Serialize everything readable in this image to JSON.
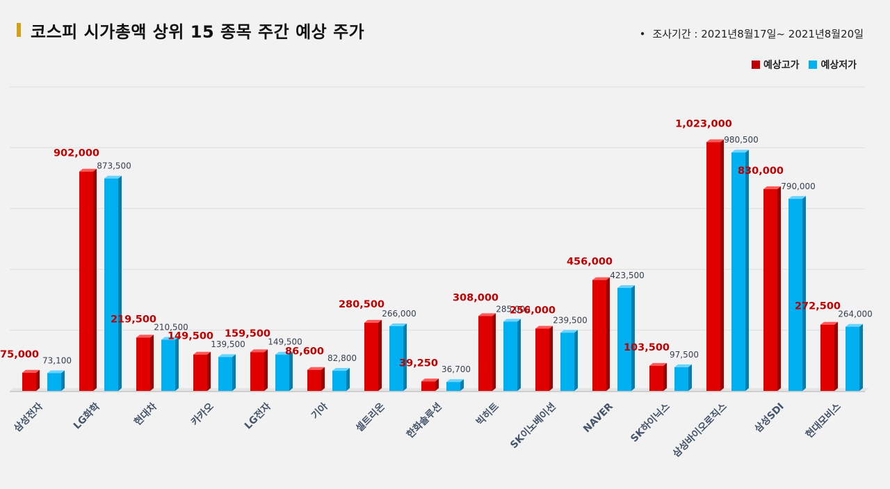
{
  "header": {
    "title": "코스피 시가총액 상위 15 종목 주간 예상 주가",
    "period_bullet": "•",
    "period": "조사기간 : 2021년8월17일~ 2021년8월20일"
  },
  "colors": {
    "high": "#e00000",
    "low": "#00b0f0",
    "accent": "#d4a017"
  },
  "chart_data": {
    "type": "bar",
    "categories": [
      "삼성전자",
      "LG화학",
      "현대차",
      "카카오",
      "LG전자",
      "기아",
      "셀트리온",
      "한화솔루션",
      "빅히트",
      "SK이노베이션",
      "NAVER",
      "SK하이닉스",
      "삼성바이오로직스",
      "삼성SDI",
      "현대모비스"
    ],
    "series": [
      {
        "name": "예상고가",
        "values": [
          75000,
          902000,
          219500,
          149500,
          159500,
          86600,
          280500,
          39250,
          308000,
          256000,
          456000,
          103500,
          1023000,
          830000,
          272500
        ],
        "labels": [
          "75,000",
          "902,000",
          "219,500",
          "149,500",
          "159,500",
          "86,600",
          "280,500",
          "39,250",
          "308,000",
          "256,000",
          "456,000",
          "103,500",
          "1,023,000",
          "830,000",
          "272,500"
        ]
      },
      {
        "name": "예상저가",
        "values": [
          73100,
          873500,
          210500,
          139500,
          149500,
          82800,
          266000,
          36700,
          285000,
          239500,
          423500,
          97500,
          980500,
          790000,
          264000
        ],
        "labels": [
          "73,100",
          "873,500",
          "210,500",
          "139,500",
          "149,500",
          "82,800",
          "266,000",
          "36,700",
          "285,000",
          "239,500",
          "423,500",
          "97,500",
          "980,500",
          "790,000",
          "264,000"
        ]
      }
    ],
    "ylim": [
      0,
      1250000
    ],
    "grid": true,
    "legend": "top-right"
  }
}
